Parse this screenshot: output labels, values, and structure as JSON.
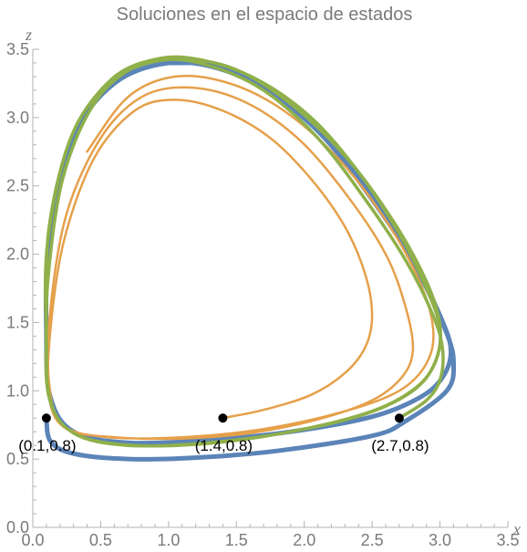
{
  "chart_data": {
    "type": "line",
    "title": "Soluciones en el espacio de estados",
    "xlabel": "x",
    "ylabel": "z",
    "xlim": [
      0,
      3.5
    ],
    "ylim": [
      0,
      3.5
    ],
    "xticks": [
      "0.0",
      "0.5",
      "1.0",
      "1.5",
      "2.0",
      "2.5",
      "3.0",
      "3.5"
    ],
    "yticks": [
      "0.0",
      "0.5",
      "1.0",
      "1.5",
      "2.0",
      "2.5",
      "3.0",
      "3.5"
    ],
    "grid": false,
    "legend": "none",
    "series": [
      {
        "color": "#5b84b8",
        "start": [
          0.1,
          0.8
        ],
        "points": [
          [
            0.1,
            0.8
          ],
          [
            0.13,
            0.63
          ],
          [
            0.3,
            0.54
          ],
          [
            0.7,
            0.5
          ],
          [
            1.2,
            0.51
          ],
          [
            1.8,
            0.56
          ],
          [
            2.5,
            0.67
          ],
          [
            2.75,
            0.78
          ],
          [
            3.05,
            1.0
          ],
          [
            3.1,
            1.2
          ],
          [
            3.05,
            1.42
          ],
          [
            2.85,
            1.85
          ],
          [
            2.55,
            2.35
          ],
          [
            2.2,
            2.8
          ],
          [
            1.8,
            3.15
          ],
          [
            1.4,
            3.35
          ],
          [
            1.0,
            3.4
          ],
          [
            0.6,
            3.25
          ],
          [
            0.3,
            2.85
          ],
          [
            0.12,
            2.1
          ],
          [
            0.1,
            1.4
          ],
          [
            0.13,
            0.95
          ],
          [
            0.3,
            0.7
          ],
          [
            0.7,
            0.62
          ],
          [
            1.3,
            0.64
          ],
          [
            1.9,
            0.7
          ],
          [
            2.5,
            0.81
          ],
          [
            2.85,
            0.95
          ],
          [
            3.02,
            1.1
          ],
          [
            3.08,
            1.3
          ],
          [
            3.0,
            1.55
          ],
          [
            2.8,
            1.95
          ],
          [
            2.5,
            2.4
          ],
          [
            2.15,
            2.85
          ],
          [
            1.75,
            3.2
          ],
          [
            1.35,
            3.38
          ],
          [
            1.0,
            3.4
          ]
        ]
      },
      {
        "color": "#e5a04a",
        "start": [
          1.4,
          0.8
        ],
        "points": [
          [
            1.4,
            0.8
          ],
          [
            1.7,
            0.86
          ],
          [
            2.05,
            0.97
          ],
          [
            2.3,
            1.13
          ],
          [
            2.45,
            1.32
          ],
          [
            2.5,
            1.55
          ],
          [
            2.45,
            1.85
          ],
          [
            2.3,
            2.2
          ],
          [
            2.05,
            2.55
          ],
          [
            1.75,
            2.85
          ],
          [
            1.4,
            3.05
          ],
          [
            1.05,
            3.13
          ],
          [
            0.75,
            3.05
          ],
          [
            0.45,
            2.7
          ],
          [
            0.23,
            2.1
          ],
          [
            0.13,
            1.45
          ],
          [
            0.12,
            0.95
          ],
          [
            0.25,
            0.72
          ],
          [
            0.6,
            0.66
          ],
          [
            1.1,
            0.65
          ],
          [
            1.6,
            0.69
          ],
          [
            2.1,
            0.79
          ],
          [
            2.5,
            0.93
          ],
          [
            2.72,
            1.1
          ],
          [
            2.8,
            1.3
          ],
          [
            2.75,
            1.6
          ],
          [
            2.6,
            2.0
          ],
          [
            2.3,
            2.45
          ],
          [
            1.95,
            2.85
          ],
          [
            1.55,
            3.12
          ],
          [
            1.15,
            3.22
          ],
          [
            0.8,
            3.15
          ],
          [
            0.5,
            2.85
          ],
          [
            0.25,
            2.3
          ],
          [
            0.13,
            1.6
          ],
          [
            0.12,
            1.05
          ],
          [
            0.22,
            0.75
          ],
          [
            0.55,
            0.66
          ],
          [
            1.1,
            0.66
          ],
          [
            1.7,
            0.72
          ],
          [
            2.3,
            0.85
          ],
          [
            2.7,
            1.0
          ],
          [
            2.9,
            1.2
          ],
          [
            2.95,
            1.45
          ],
          [
            2.85,
            1.8
          ],
          [
            2.6,
            2.25
          ],
          [
            2.25,
            2.7
          ],
          [
            1.85,
            3.05
          ],
          [
            1.45,
            3.25
          ],
          [
            1.05,
            3.3
          ],
          [
            0.7,
            3.15
          ],
          [
            0.4,
            2.75
          ]
        ]
      },
      {
        "color": "#8fb04a",
        "start": [
          2.7,
          0.8
        ],
        "points": [
          [
            2.7,
            0.8
          ],
          [
            2.9,
            0.93
          ],
          [
            3.0,
            1.08
          ],
          [
            3.02,
            1.3
          ],
          [
            2.95,
            1.55
          ],
          [
            2.75,
            1.95
          ],
          [
            2.45,
            2.4
          ],
          [
            2.1,
            2.85
          ],
          [
            1.7,
            3.2
          ],
          [
            1.3,
            3.38
          ],
          [
            0.95,
            3.42
          ],
          [
            0.6,
            3.28
          ],
          [
            0.3,
            2.9
          ],
          [
            0.12,
            2.2
          ],
          [
            0.1,
            1.45
          ],
          [
            0.12,
            0.95
          ],
          [
            0.3,
            0.69
          ],
          [
            0.7,
            0.6
          ],
          [
            1.3,
            0.62
          ],
          [
            1.9,
            0.7
          ],
          [
            2.45,
            0.83
          ],
          [
            2.8,
            1.0
          ],
          [
            2.96,
            1.2
          ],
          [
            3.0,
            1.45
          ],
          [
            2.9,
            1.75
          ],
          [
            2.7,
            2.15
          ],
          [
            2.4,
            2.6
          ],
          [
            2.05,
            3.0
          ],
          [
            1.65,
            3.28
          ],
          [
            1.25,
            3.42
          ],
          [
            0.92,
            3.43
          ],
          [
            0.58,
            3.28
          ],
          [
            0.28,
            2.85
          ],
          [
            0.11,
            2.1
          ],
          [
            0.1,
            1.4
          ],
          [
            0.13,
            0.92
          ],
          [
            0.32,
            0.68
          ],
          [
            0.75,
            0.6
          ],
          [
            1.35,
            0.62
          ],
          [
            1.95,
            0.71
          ],
          [
            2.5,
            0.85
          ],
          [
            2.82,
            1.02
          ],
          [
            2.97,
            1.22
          ],
          [
            3.0,
            1.48
          ],
          [
            2.9,
            1.8
          ],
          [
            2.65,
            2.25
          ],
          [
            2.3,
            2.72
          ],
          [
            1.9,
            3.1
          ],
          [
            1.5,
            3.35
          ],
          [
            1.1,
            3.43
          ],
          [
            0.75,
            3.37
          ],
          [
            0.45,
            3.1
          ],
          [
            0.22,
            2.55
          ],
          [
            0.11,
            1.8
          ],
          [
            0.1,
            1.2
          ]
        ]
      }
    ],
    "points": [
      {
        "x": 0.1,
        "y": 0.8,
        "label": "(0.1,0.8)"
      },
      {
        "x": 1.4,
        "y": 0.8,
        "label": "(1.4,0.8)"
      },
      {
        "x": 2.7,
        "y": 0.8,
        "label": "(2.7,0.8)"
      }
    ]
  }
}
